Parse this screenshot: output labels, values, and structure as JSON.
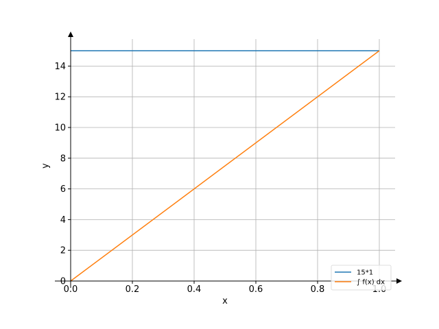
{
  "chart_data": {
    "type": "line",
    "xlabel": "x",
    "ylabel": "y",
    "xlim": [
      0,
      1.05
    ],
    "ylim": [
      0,
      15.75
    ],
    "xticks": [
      0.0,
      0.2,
      0.4,
      0.6,
      0.8,
      1.0
    ],
    "xtick_labels": [
      "0.0",
      "0.2",
      "0.4",
      "0.6",
      "0.8",
      "1.0"
    ],
    "yticks": [
      0,
      2,
      4,
      6,
      8,
      10,
      12,
      14
    ],
    "ytick_labels": [
      "0",
      "2",
      "4",
      "6",
      "8",
      "10",
      "12",
      "14"
    ],
    "grid": true,
    "legend_position": "bottom-right",
    "series": [
      {
        "name": "15*1",
        "color": "#1f77b4",
        "x": [
          0,
          1
        ],
        "y": [
          15,
          15
        ]
      },
      {
        "name": "∫ f(x) dx",
        "color": "#ff7f0e",
        "x": [
          0,
          1
        ],
        "y": [
          0,
          15
        ]
      }
    ]
  }
}
